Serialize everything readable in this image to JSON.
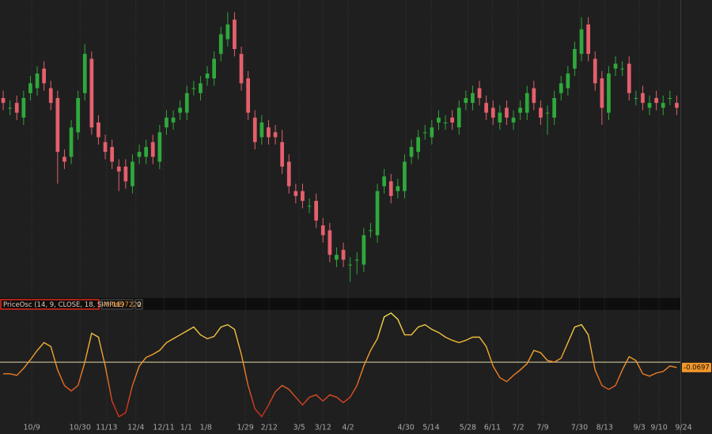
{
  "chart_data": [
    {
      "type": "candlestick",
      "up_color": "#2fa83c",
      "down_color": "#e4606c",
      "xlim": [
        -0.47,
        99.53
      ],
      "ylim": [
        13.55,
        19.6
      ],
      "yticks": [
        14,
        14.5,
        15,
        15.5,
        16,
        16.5,
        17,
        17.5,
        18,
        18.5,
        19,
        19.5
      ],
      "grid": true,
      "open": [
        17.6,
        17.4,
        17.5,
        17.2,
        17.7,
        17.8,
        18.2,
        17.8,
        17.6,
        16.4,
        16.4,
        16.9,
        17.7,
        18.4,
        17.1,
        16.7,
        16.6,
        16.2,
        16.2,
        15.8,
        16.4,
        16.4,
        16.7,
        16.3,
        17.0,
        17.1,
        17.3,
        17.3,
        17.8,
        17.7,
        18.0,
        18.0,
        18.5,
        18.8,
        19.2,
        18.5,
        18.0,
        17.2,
        16.8,
        17.0,
        16.9,
        16.7,
        16.3,
        15.7,
        15.7,
        15.4,
        15.5,
        15.0,
        14.9,
        14.3,
        14.5,
        14.2,
        14.3,
        14.2,
        14.9,
        14.8,
        15.8,
        15.9,
        15.7,
        15.7,
        16.4,
        16.5,
        16.9,
        16.8,
        17.1,
        17.1,
        17.2,
        17.0,
        17.5,
        17.5,
        17.8,
        17.5,
        17.4,
        17.1,
        17.4,
        17.1,
        17.3,
        17.3,
        17.8,
        17.4,
        17.3,
        17.2,
        17.7,
        17.8,
        18.2,
        18.5,
        19.1,
        18.4,
        18.0,
        17.3,
        18.2,
        18.2,
        18.3,
        17.6,
        17.7,
        17.4,
        17.6,
        17.4,
        17.6,
        17.5
      ],
      "high": [
        17.75,
        17.55,
        17.65,
        17.75,
        18.05,
        18.25,
        18.35,
        17.95,
        17.75,
        16.55,
        17.15,
        17.75,
        18.7,
        18.55,
        17.25,
        16.85,
        16.75,
        16.35,
        16.35,
        16.45,
        16.65,
        16.75,
        16.85,
        17.05,
        17.35,
        17.35,
        17.55,
        17.85,
        17.95,
        18.05,
        18.25,
        18.55,
        19.05,
        19.35,
        19.35,
        18.65,
        18.15,
        17.35,
        17.25,
        17.15,
        17.05,
        16.95,
        16.45,
        15.85,
        15.85,
        15.55,
        15.65,
        15.15,
        15.05,
        14.55,
        14.65,
        14.35,
        14.45,
        14.95,
        15.05,
        15.85,
        16.15,
        16.05,
        15.95,
        16.45,
        16.75,
        16.95,
        17.05,
        17.15,
        17.35,
        17.25,
        17.35,
        17.55,
        17.75,
        17.85,
        17.95,
        17.65,
        17.55,
        17.45,
        17.55,
        17.35,
        17.55,
        17.85,
        17.95,
        17.55,
        17.45,
        17.75,
        18.05,
        18.25,
        18.75,
        19.25,
        19.25,
        18.55,
        18.15,
        18.25,
        18.45,
        18.35,
        18.45,
        17.75,
        17.85,
        17.65,
        17.75,
        17.65,
        17.75,
        17.65
      ],
      "low": [
        17.35,
        17.25,
        17.15,
        17.05,
        17.55,
        17.65,
        17.75,
        17.35,
        15.85,
        16.15,
        16.25,
        16.75,
        17.55,
        16.85,
        16.65,
        16.35,
        16.15,
        15.7,
        15.75,
        15.65,
        16.25,
        16.25,
        16.25,
        16.15,
        16.85,
        16.95,
        17.15,
        17.15,
        17.65,
        17.55,
        17.85,
        17.85,
        18.35,
        18.65,
        18.45,
        17.75,
        17.15,
        16.55,
        16.65,
        16.65,
        16.65,
        16.05,
        15.65,
        15.45,
        15.35,
        15.25,
        14.95,
        14.65,
        14.25,
        14.15,
        14.15,
        13.85,
        14.0,
        14.05,
        14.75,
        14.65,
        15.65,
        15.45,
        15.55,
        15.55,
        16.25,
        16.35,
        16.75,
        16.65,
        16.95,
        16.95,
        16.95,
        16.85,
        17.35,
        17.35,
        17.45,
        17.15,
        17.05,
        16.95,
        17.05,
        16.95,
        17.15,
        17.15,
        17.35,
        17.05,
        16.85,
        17.05,
        17.55,
        17.65,
        18.05,
        18.35,
        18.35,
        17.75,
        17.05,
        17.15,
        18.05,
        18.05,
        17.55,
        17.45,
        17.35,
        17.25,
        17.35,
        17.25,
        17.45,
        17.25
      ],
      "close": [
        17.5,
        17.4,
        17.3,
        17.6,
        17.9,
        18.1,
        17.9,
        17.5,
        16.5,
        16.3,
        17.0,
        17.6,
        18.5,
        17.0,
        16.8,
        16.5,
        16.3,
        16.1,
        15.9,
        16.3,
        16.5,
        16.6,
        16.4,
        16.9,
        17.2,
        17.2,
        17.4,
        17.7,
        17.8,
        17.9,
        18.1,
        18.4,
        18.9,
        19.1,
        18.6,
        17.9,
        17.3,
        16.7,
        17.1,
        16.8,
        16.8,
        16.2,
        15.8,
        15.6,
        15.5,
        15.4,
        15.1,
        14.8,
        14.4,
        14.4,
        14.3,
        14.2,
        14.3,
        14.8,
        14.9,
        15.7,
        16.0,
        15.6,
        15.8,
        16.3,
        16.6,
        16.8,
        16.9,
        17.0,
        17.2,
        17.1,
        17.1,
        17.4,
        17.6,
        17.7,
        17.6,
        17.3,
        17.2,
        17.3,
        17.2,
        17.2,
        17.4,
        17.7,
        17.5,
        17.2,
        17.3,
        17.6,
        17.9,
        18.1,
        18.6,
        19.0,
        18.5,
        17.9,
        17.4,
        18.1,
        18.3,
        18.2,
        17.7,
        17.6,
        17.5,
        17.5,
        17.5,
        17.5,
        17.6,
        17.4
      ]
    },
    {
      "type": "line",
      "study_label": "PriceOsc (14, 9, CLOSE, 18, SIMPLE)",
      "study_value": "-0.0697222",
      "study_extra": "0",
      "last_value": -0.0697,
      "gradient": [
        "#f2de4e",
        "#f2962a",
        "#d0301f"
      ],
      "zero_color": "#e2d9a8",
      "xlim": [
        -0.47,
        99.53
      ],
      "ylim": [
        -0.76,
        0.67
      ],
      "yticks": [
        -0.6,
        -0.4,
        -0.2,
        0,
        0.2,
        0.4,
        0.6
      ],
      "xticks": [
        {
          "value": 4.2,
          "label": "10/9"
        },
        {
          "value": 11.3,
          "label": "10/30"
        },
        {
          "value": 15.2,
          "label": "11/13"
        },
        {
          "value": 19.5,
          "label": "12/4"
        },
        {
          "value": 23.6,
          "label": "12/11"
        },
        {
          "value": 26.9,
          "label": "1/1"
        },
        {
          "value": 29.8,
          "label": "1/8"
        },
        {
          "value": 35.6,
          "label": "1/29"
        },
        {
          "value": 39.1,
          "label": "2/12"
        },
        {
          "value": 43.5,
          "label": "3/5"
        },
        {
          "value": 47,
          "label": "3/12"
        },
        {
          "value": 50.7,
          "label": "4/2"
        },
        {
          "value": 59.2,
          "label": "4/30"
        },
        {
          "value": 62.9,
          "label": "5/14"
        },
        {
          "value": 68.3,
          "label": "5/28"
        },
        {
          "value": 71.9,
          "label": "6/11"
        },
        {
          "value": 75.7,
          "label": "7/2"
        },
        {
          "value": 79.3,
          "label": "7/9"
        },
        {
          "value": 84.7,
          "label": "7/30"
        },
        {
          "value": 88.4,
          "label": "8/13"
        },
        {
          "value": 93.5,
          "label": "9/3"
        },
        {
          "value": 96.4,
          "label": "9/10"
        },
        {
          "value": 100,
          "label": "9/24"
        }
      ],
      "values": [
        -0.15,
        -0.15,
        -0.17,
        -0.08,
        0.03,
        0.15,
        0.25,
        0.2,
        -0.1,
        -0.3,
        -0.37,
        -0.3,
        0.0,
        0.37,
        0.32,
        -0.05,
        -0.5,
        -0.7,
        -0.65,
        -0.3,
        -0.05,
        0.06,
        0.1,
        0.15,
        0.25,
        0.3,
        0.35,
        0.4,
        0.45,
        0.35,
        0.3,
        0.33,
        0.45,
        0.48,
        0.42,
        0.1,
        -0.3,
        -0.6,
        -0.7,
        -0.55,
        -0.38,
        -0.3,
        -0.35,
        -0.45,
        -0.55,
        -0.45,
        -0.42,
        -0.5,
        -0.42,
        -0.45,
        -0.52,
        -0.45,
        -0.3,
        -0.05,
        0.15,
        0.3,
        0.58,
        0.63,
        0.55,
        0.35,
        0.35,
        0.45,
        0.48,
        0.42,
        0.38,
        0.32,
        0.28,
        0.25,
        0.28,
        0.32,
        0.32,
        0.2,
        -0.05,
        -0.2,
        -0.25,
        -0.17,
        -0.1,
        -0.02,
        0.15,
        0.12,
        0.02,
        0.0,
        0.05,
        0.25,
        0.45,
        0.48,
        0.35,
        -0.1,
        -0.3,
        -0.35,
        -0.3,
        -0.1,
        0.07,
        0.02,
        -0.15,
        -0.18,
        -0.14,
        -0.12,
        -0.05,
        -0.07
      ]
    }
  ]
}
